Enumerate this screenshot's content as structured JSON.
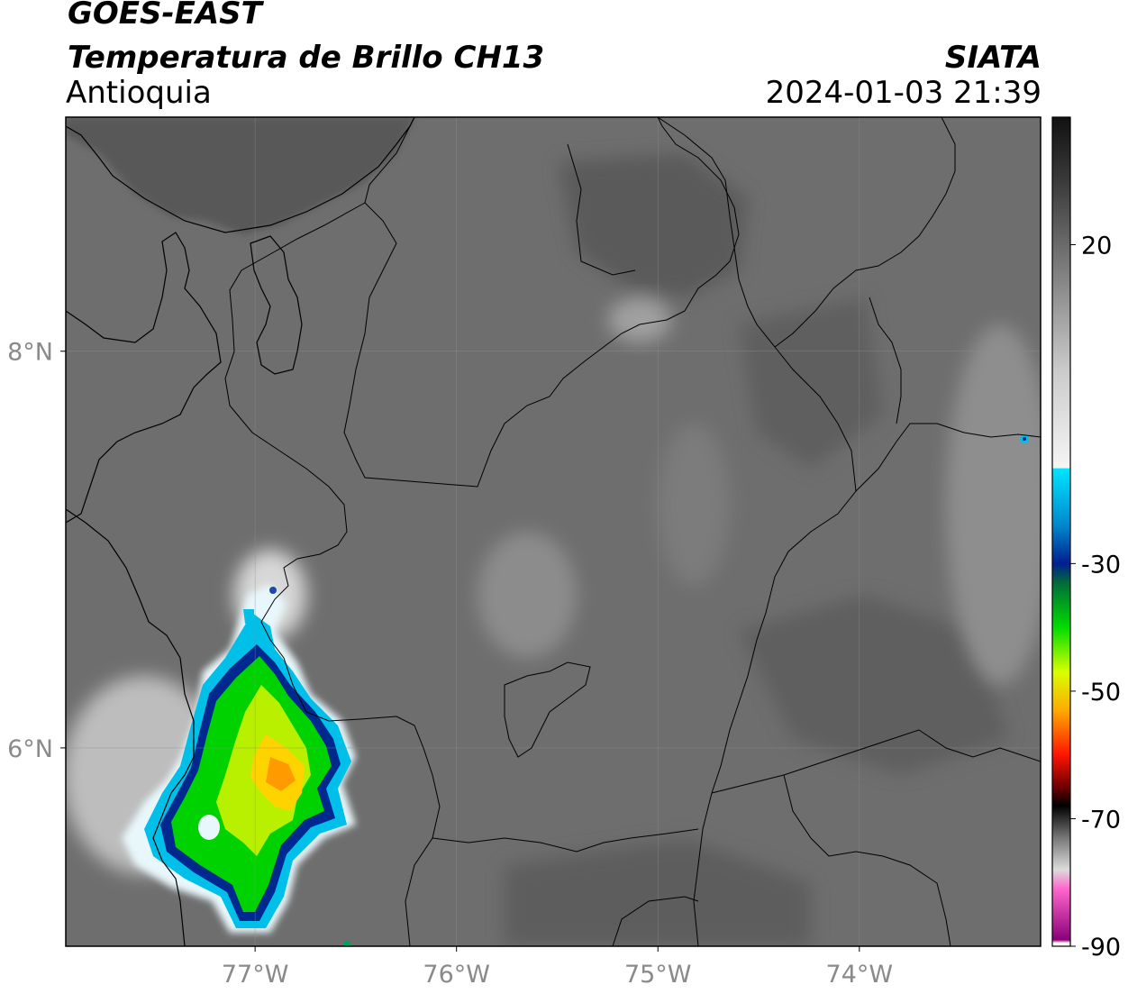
{
  "header": {
    "satellite": "GOES-EAST",
    "product": "Temperatura de Brillo CH13",
    "region": "Antioquia",
    "organization": "SIATA",
    "datetime": "2024-01-03 21:39"
  },
  "map": {
    "lon_range": [
      -77.94,
      -73.1
    ],
    "lat_range": [
      5.0,
      9.18
    ],
    "lon_ticks": [
      {
        "value": -77,
        "label": "77°W"
      },
      {
        "value": -76,
        "label": "76°W"
      },
      {
        "value": -75,
        "label": "75°W"
      },
      {
        "value": -74,
        "label": "74°W"
      }
    ],
    "lat_ticks": [
      {
        "value": 8,
        "label": "8°N"
      },
      {
        "value": 6,
        "label": "6°N"
      }
    ],
    "background_color": "#6e6e6e",
    "gridlines": true
  },
  "colorbar": {
    "range": [
      -90,
      40
    ],
    "ticks": [
      {
        "value": 20,
        "label": "20"
      },
      {
        "value": -30,
        "label": "-30"
      },
      {
        "value": -50,
        "label": "-50"
      },
      {
        "value": -70,
        "label": "-70"
      },
      {
        "value": -90,
        "label": "-90"
      }
    ],
    "stops": [
      {
        "value": 40,
        "color": "#111111"
      },
      {
        "value": 30,
        "color": "#3a3a3a"
      },
      {
        "value": 20,
        "color": "#6a6a6a"
      },
      {
        "value": 0,
        "color": "#cccccc"
      },
      {
        "value": -15,
        "color": "#f5f5f5"
      },
      {
        "value": -15.1,
        "color": "#00e5ff"
      },
      {
        "value": -24,
        "color": "#0088cc"
      },
      {
        "value": -30,
        "color": "#001f8f"
      },
      {
        "value": -33,
        "color": "#006b3a"
      },
      {
        "value": -40,
        "color": "#00dd00"
      },
      {
        "value": -47,
        "color": "#d8ff00"
      },
      {
        "value": -53,
        "color": "#ffaa00"
      },
      {
        "value": -60,
        "color": "#ff1500"
      },
      {
        "value": -65,
        "color": "#700000"
      },
      {
        "value": -68,
        "color": "#000000"
      },
      {
        "value": -73,
        "color": "#777777"
      },
      {
        "value": -78,
        "color": "#dcdcdc"
      },
      {
        "value": -81,
        "color": "#ff66cc"
      },
      {
        "value": -89,
        "color": "#8a007a"
      },
      {
        "value": -89.5,
        "color": "#ffffff"
      }
    ]
  }
}
